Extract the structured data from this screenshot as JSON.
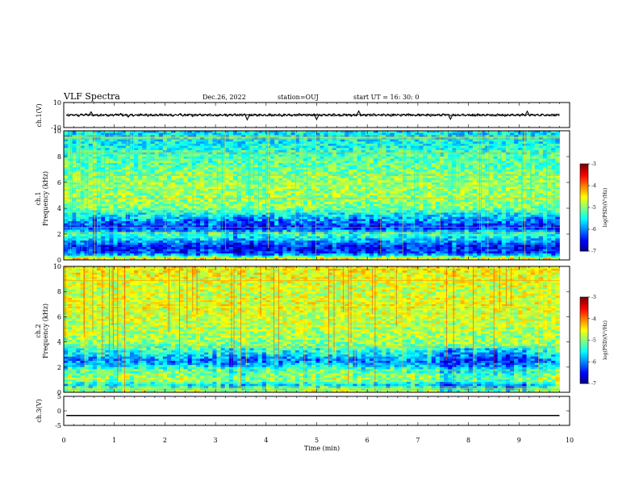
{
  "header": {
    "title": "VLF Spectra",
    "date": "Dec.26, 2022",
    "station": "station=OUJ",
    "start": "start  UT =   16: 30: 0"
  },
  "chart_data": [
    {
      "type": "line",
      "panel": "ch1-waveform",
      "ylabel": "ch.1(V)",
      "yticks": [
        "10",
        "-10"
      ],
      "ylim": [
        -10,
        10
      ],
      "series": [
        {
          "values": [
            0.2,
            -0.8,
            0.5,
            -0.3,
            0.6,
            -1.2,
            0.9,
            -0.4,
            1.1,
            -0.6,
            2.5,
            -0.7,
            0.4,
            -0.9,
            0.8,
            -0.5,
            0.7,
            -1.0,
            0.3,
            -0.6,
            0.9,
            -0.3,
            1.3,
            -0.8,
            0.5,
            -1.6,
            0.6,
            -0.9,
            0.4,
            -0.7,
            1.0,
            -0.4,
            0.8,
            -1.1,
            0.6,
            -0.5,
            0.7,
            -0.8,
            0.9,
            -0.6,
            0.5,
            -0.7,
            0.8,
            -1.0,
            0.6,
            -0.4,
            1.2,
            -0.9,
            0.5,
            -0.6,
            0.8,
            -1.3,
            0.7,
            -0.5,
            0.9,
            -0.8,
            0.6,
            -0.7,
            1.0,
            -0.5,
            0.4,
            -0.9,
            0.7,
            -0.6,
            0.8,
            -1.0,
            0.5,
            -0.7,
            1.1,
            -0.4,
            0.6,
            -0.8,
            0.9,
            -3.8,
            0.5,
            -0.6,
            0.7,
            -0.9,
            0.8,
            -0.5,
            0.6,
            -0.7,
            1.0,
            -0.8,
            0.5,
            -0.6,
            0.9,
            -1.1,
            0.7,
            -0.5,
            0.8,
            -0.9,
            0.6,
            -0.7,
            1.2,
            -0.6,
            0.5,
            -0.8,
            0.7,
            -0.4,
            0.9,
            -3.6,
            0.6,
            -0.9,
            0.8,
            -0.5,
            0.7,
            -0.7,
            1.0,
            -0.6,
            0.5,
            -0.8,
            0.9,
            -0.5,
            0.6,
            -1.0,
            0.8,
            -0.7,
            3.2,
            -0.6,
            0.5,
            -0.9,
            0.7,
            -0.5,
            1.0,
            -0.8,
            0.6,
            -0.6,
            0.9,
            -0.7,
            0.5,
            -1.0,
            0.8,
            -0.4,
            0.6,
            -0.9,
            0.7,
            -0.6,
            1.1,
            -0.5,
            0.4,
            -0.8,
            0.9,
            -0.7,
            0.6,
            -0.5,
            0.8,
            -1.1,
            0.5,
            -0.6,
            0.7,
            -0.8,
            1.0,
            -0.5,
            0.6,
            -3.4,
            0.8,
            -0.7,
            0.5,
            -0.6,
            0.9,
            -0.8,
            0.6,
            -0.5,
            0.7,
            -0.9,
            1.0,
            -0.6,
            0.5,
            -0.7,
            0.8,
            -0.5,
            0.6,
            -0.8,
            0.9,
            -0.6,
            0.7,
            -1.0,
            0.5,
            -0.7,
            0.8,
            -0.5,
            0.6,
            -0.9,
            1.1,
            -0.6,
            3.0,
            -0.8,
            0.7,
            -0.5,
            0.6,
            -0.7,
            0.9,
            -0.6,
            0.5,
            -0.8,
            0.8,
            -0.6,
            0.7,
            -0.5
          ]
        }
      ]
    },
    {
      "type": "heatmap",
      "panel": "ch1-spectrogram",
      "ylabel": "ch.1\nFrequency  (kHz)",
      "yticks": [
        "0",
        "2",
        "4",
        "6",
        "8",
        "10"
      ],
      "ylim": [
        0,
        10
      ],
      "x_range_min": [
        0,
        9.8
      ],
      "colorbar": {
        "label": "log(PSD)(V²/Hz)",
        "ticks": [
          "-3",
          "-4",
          "-5",
          "-6",
          "-7"
        ],
        "range": [
          -7,
          -3
        ],
        "colormap": "jet"
      },
      "freq_profile_khz": [
        0,
        0.5,
        1,
        1.5,
        2,
        2.5,
        3,
        3.5,
        4,
        5,
        6,
        7,
        8,
        9,
        10
      ],
      "log_psd_profile": [
        -4.2,
        -6.2,
        -6.5,
        -5.8,
        -5.2,
        -6.4,
        -6.0,
        -5.6,
        -5.0,
        -4.9,
        -4.9,
        -5.1,
        -5.2,
        -5.5,
        -5.6
      ]
    },
    {
      "type": "heatmap",
      "panel": "ch2-spectrogram",
      "ylabel": "ch.2\nFrequency  (kHz)",
      "yticks": [
        "0",
        "2",
        "4",
        "6",
        "8",
        "10"
      ],
      "ylim": [
        0,
        10
      ],
      "x_range_min": [
        0,
        9.8
      ],
      "colorbar": {
        "label": "log(PSD)(V²/Hz)",
        "ticks": [
          "-3",
          "-4",
          "-5",
          "-6",
          "-7"
        ],
        "range": [
          -7,
          -3
        ],
        "colormap": "jet"
      },
      "freq_profile_khz": [
        0,
        0.5,
        1,
        1.5,
        2,
        2.5,
        3,
        3.5,
        4,
        5,
        6,
        7,
        8,
        9,
        10
      ],
      "log_psd_profile": [
        -4.6,
        -5.6,
        -4.8,
        -5.0,
        -5.4,
        -6.0,
        -5.5,
        -5.2,
        -4.9,
        -4.8,
        -4.7,
        -4.6,
        -4.7,
        -4.6,
        -4.5
      ]
    },
    {
      "type": "line",
      "panel": "ch3-waveform",
      "ylabel": "ch.3(V)",
      "yticks": [
        "5",
        "0",
        "-5"
      ],
      "ylim": [
        -5,
        5
      ],
      "series": [
        {
          "values": [
            -1.6,
            -1.6
          ]
        }
      ]
    }
  ],
  "xaxis": {
    "label": "Time  (min)",
    "ticks": [
      "0",
      "1",
      "2",
      "3",
      "4",
      "5",
      "6",
      "7",
      "8",
      "9",
      "10"
    ],
    "range": [
      0,
      10
    ]
  }
}
